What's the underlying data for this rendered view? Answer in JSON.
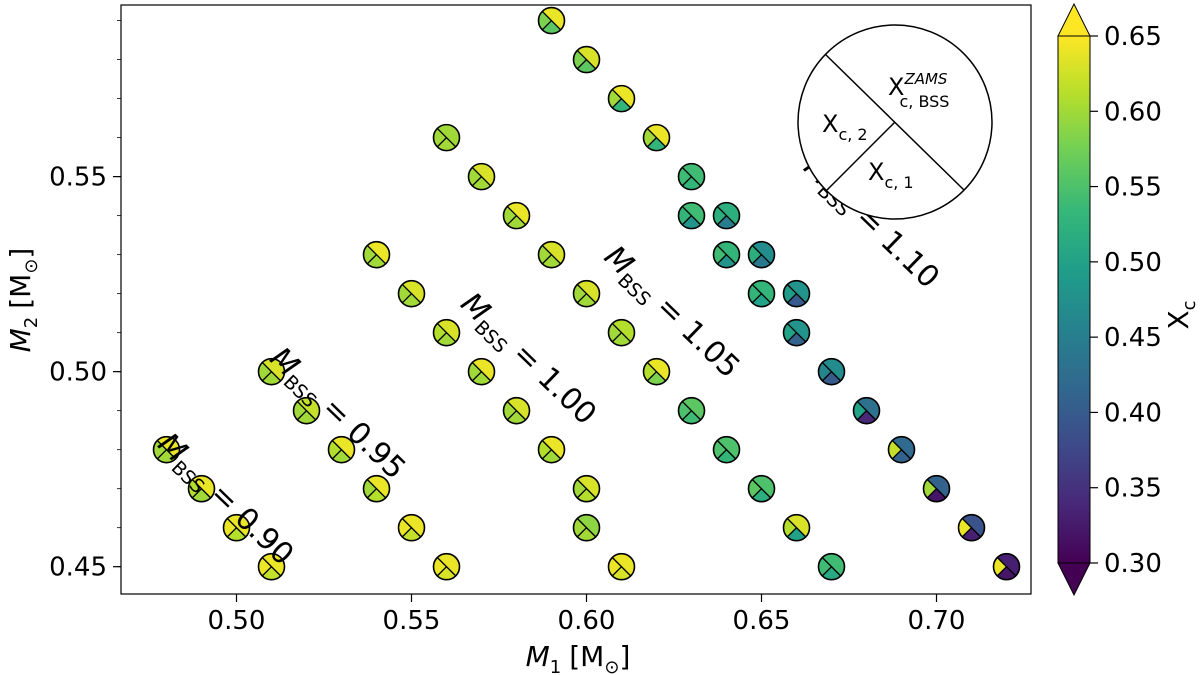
{
  "chart_data": {
    "type": "scatter",
    "marker": "split-circle",
    "xlabel": "M",
    "xlabel_sub": "1",
    "xlabel_unit": "[M",
    "xlabel_unit_sub": "⊙",
    "xlabel_unit_close": "]",
    "ylabel": "M",
    "ylabel_sub": "2",
    "ylabel_unit": "[M",
    "ylabel_unit_sub": "⊙",
    "ylabel_unit_close": "]",
    "xlim": [
      0.467,
      0.727
    ],
    "ylim": [
      0.443,
      0.594
    ],
    "xticks": [
      {
        "value": 0.5,
        "label": "0.50"
      },
      {
        "value": 0.55,
        "label": "0.55"
      },
      {
        "value": 0.6,
        "label": "0.60"
      },
      {
        "value": 0.65,
        "label": "0.65"
      },
      {
        "value": 0.7,
        "label": "0.70"
      }
    ],
    "yticks": [
      {
        "value": 0.45,
        "label": "0.45"
      },
      {
        "value": 0.5,
        "label": "0.50"
      },
      {
        "value": 0.55,
        "label": "0.55"
      }
    ],
    "colorbar": {
      "label": "X",
      "label_sub": "c",
      "range": [
        0.3,
        0.65
      ],
      "ticks": [
        {
          "value": 0.65,
          "label": "0.65"
        },
        {
          "value": 0.6,
          "label": "0.60"
        },
        {
          "value": 0.55,
          "label": "0.55"
        },
        {
          "value": 0.5,
          "label": "0.50"
        },
        {
          "value": 0.45,
          "label": "0.45"
        },
        {
          "value": 0.4,
          "label": "0.40"
        },
        {
          "value": 0.35,
          "label": "0.35"
        },
        {
          "value": 0.3,
          "label": "0.30"
        }
      ],
      "colormap": [
        "#440154",
        "#482878",
        "#3e4a89",
        "#31688e",
        "#26828e",
        "#1f9e89",
        "#35b779",
        "#6ece58",
        "#b5de2b",
        "#fde725"
      ],
      "extend": "both"
    },
    "legend": {
      "position": "top-right",
      "top_label": "X",
      "top_sup": "ZAMS",
      "top_sub": "c, BSS",
      "left_label": "X",
      "left_sub": "c, 2",
      "bottom_label": "X",
      "bottom_sub": "c, 1"
    },
    "annotations": [
      {
        "prefix": "M",
        "sub": "BSS",
        "text": " = 0.90",
        "x": 0.495,
        "y": 0.4655
      },
      {
        "prefix": "M",
        "sub": "BSS",
        "text": " = 0.95",
        "x": 0.527,
        "y": 0.4875
      },
      {
        "prefix": "M",
        "sub": "BSS",
        "text": " = 1.00",
        "x": 0.5815,
        "y": 0.5015
      },
      {
        "prefix": "M",
        "sub": "BSS",
        "text": " = 1.05",
        "x": 0.6225,
        "y": 0.5135
      },
      {
        "prefix": "M",
        "sub": "BSS",
        "text": " = 1.10",
        "x": 0.6795,
        "y": 0.5365
      }
    ],
    "series": [
      {
        "name": "M_BSS = 0.90",
        "points": [
          {
            "m1": 0.48,
            "m2": 0.48,
            "xc1": 0.6,
            "xc2": 0.6,
            "xc_bss": 0.64
          },
          {
            "m1": 0.49,
            "m2": 0.47,
            "xc1": 0.6,
            "xc2": 0.61,
            "xc_bss": 0.64
          },
          {
            "m1": 0.5,
            "m2": 0.46,
            "xc1": 0.61,
            "xc2": 0.64,
            "xc_bss": 0.64
          },
          {
            "m1": 0.51,
            "m2": 0.45,
            "xc1": 0.62,
            "xc2": 0.64,
            "xc_bss": 0.64
          }
        ]
      },
      {
        "name": "M_BSS = 0.95",
        "points": [
          {
            "m1": 0.51,
            "m2": 0.5,
            "xc1": 0.6,
            "xc2": 0.6,
            "xc_bss": 0.63
          },
          {
            "m1": 0.52,
            "m2": 0.49,
            "xc1": 0.6,
            "xc2": 0.6,
            "xc_bss": 0.62
          },
          {
            "m1": 0.53,
            "m2": 0.48,
            "xc1": 0.6,
            "xc2": 0.61,
            "xc_bss": 0.64
          },
          {
            "m1": 0.54,
            "m2": 0.47,
            "xc1": 0.61,
            "xc2": 0.6,
            "xc_bss": 0.64
          },
          {
            "m1": 0.55,
            "m2": 0.46,
            "xc1": 0.62,
            "xc2": 0.64,
            "xc_bss": 0.64
          },
          {
            "m1": 0.56,
            "m2": 0.45,
            "xc1": 0.63,
            "xc2": 0.64,
            "xc_bss": 0.64
          }
        ]
      },
      {
        "name": "M_BSS = 1.00",
        "points": [
          {
            "m1": 0.54,
            "m2": 0.53,
            "xc1": 0.6,
            "xc2": 0.6,
            "xc_bss": 0.64
          },
          {
            "m1": 0.55,
            "m2": 0.52,
            "xc1": 0.6,
            "xc2": 0.6,
            "xc_bss": 0.63
          },
          {
            "m1": 0.56,
            "m2": 0.51,
            "xc1": 0.6,
            "xc2": 0.61,
            "xc_bss": 0.63
          },
          {
            "m1": 0.57,
            "m2": 0.5,
            "xc1": 0.6,
            "xc2": 0.6,
            "xc_bss": 0.64
          },
          {
            "m1": 0.58,
            "m2": 0.49,
            "xc1": 0.6,
            "xc2": 0.6,
            "xc_bss": 0.63
          },
          {
            "m1": 0.59,
            "m2": 0.48,
            "xc1": 0.6,
            "xc2": 0.61,
            "xc_bss": 0.64
          },
          {
            "m1": 0.6,
            "m2": 0.47,
            "xc1": 0.61,
            "xc2": 0.6,
            "xc_bss": 0.63
          },
          {
            "m1": 0.6,
            "m2": 0.46,
            "xc1": 0.6,
            "xc2": 0.6,
            "xc_bss": 0.59
          },
          {
            "m1": 0.61,
            "m2": 0.45,
            "xc1": 0.63,
            "xc2": 0.64,
            "xc_bss": 0.64
          }
        ]
      },
      {
        "name": "M_BSS = 1.05",
        "points": [
          {
            "m1": 0.56,
            "m2": 0.56,
            "xc1": 0.6,
            "xc2": 0.6,
            "xc_bss": 0.6
          },
          {
            "m1": 0.57,
            "m2": 0.55,
            "xc1": 0.6,
            "xc2": 0.6,
            "xc_bss": 0.63
          },
          {
            "m1": 0.58,
            "m2": 0.54,
            "xc1": 0.6,
            "xc2": 0.6,
            "xc_bss": 0.64
          },
          {
            "m1": 0.59,
            "m2": 0.53,
            "xc1": 0.6,
            "xc2": 0.6,
            "xc_bss": 0.63
          },
          {
            "m1": 0.6,
            "m2": 0.52,
            "xc1": 0.6,
            "xc2": 0.6,
            "xc_bss": 0.63
          },
          {
            "m1": 0.61,
            "m2": 0.51,
            "xc1": 0.6,
            "xc2": 0.6,
            "xc_bss": 0.61
          },
          {
            "m1": 0.62,
            "m2": 0.5,
            "xc1": 0.58,
            "xc2": 0.61,
            "xc_bss": 0.64
          },
          {
            "m1": 0.63,
            "m2": 0.49,
            "xc1": 0.54,
            "xc2": 0.55,
            "xc_bss": 0.56
          },
          {
            "m1": 0.64,
            "m2": 0.48,
            "xc1": 0.53,
            "xc2": 0.55,
            "xc_bss": 0.55
          },
          {
            "m1": 0.65,
            "m2": 0.47,
            "xc1": 0.52,
            "xc2": 0.56,
            "xc_bss": 0.55
          },
          {
            "m1": 0.66,
            "m2": 0.46,
            "xc1": 0.5,
            "xc2": 0.61,
            "xc_bss": 0.63
          },
          {
            "m1": 0.67,
            "m2": 0.45,
            "xc1": 0.51,
            "xc2": 0.54,
            "xc_bss": 0.54
          }
        ]
      },
      {
        "name": "M_BSS = 1.10",
        "points": [
          {
            "m1": 0.59,
            "m2": 0.59,
            "xc1": 0.56,
            "xc2": 0.58,
            "xc_bss": 0.64
          },
          {
            "m1": 0.6,
            "m2": 0.58,
            "xc1": 0.56,
            "xc2": 0.58,
            "xc_bss": 0.63
          },
          {
            "m1": 0.61,
            "m2": 0.57,
            "xc1": 0.53,
            "xc2": 0.6,
            "xc_bss": 0.64
          },
          {
            "m1": 0.62,
            "m2": 0.56,
            "xc1": 0.53,
            "xc2": 0.6,
            "xc_bss": 0.64
          },
          {
            "m1": 0.63,
            "m2": 0.55,
            "xc1": 0.53,
            "xc2": 0.54,
            "xc_bss": 0.54
          },
          {
            "m1": 0.63,
            "m2": 0.54,
            "xc1": 0.48,
            "xc2": 0.53,
            "xc_bss": 0.54
          },
          {
            "m1": 0.64,
            "m2": 0.54,
            "xc1": 0.45,
            "xc2": 0.52,
            "xc_bss": 0.52
          },
          {
            "m1": 0.64,
            "m2": 0.53,
            "xc1": 0.48,
            "xc2": 0.54,
            "xc_bss": 0.53
          },
          {
            "m1": 0.65,
            "m2": 0.53,
            "xc1": 0.44,
            "xc2": 0.52,
            "xc_bss": 0.47
          },
          {
            "m1": 0.65,
            "m2": 0.52,
            "xc1": 0.5,
            "xc2": 0.53,
            "xc_bss": 0.53
          },
          {
            "m1": 0.66,
            "m2": 0.52,
            "xc1": 0.4,
            "xc2": 0.49,
            "xc_bss": 0.48
          },
          {
            "m1": 0.66,
            "m2": 0.51,
            "xc1": 0.41,
            "xc2": 0.5,
            "xc_bss": 0.48
          },
          {
            "m1": 0.67,
            "m2": 0.5,
            "xc1": 0.4,
            "xc2": 0.46,
            "xc_bss": 0.47
          },
          {
            "m1": 0.68,
            "m2": 0.49,
            "xc1": 0.34,
            "xc2": 0.5,
            "xc_bss": 0.43
          },
          {
            "m1": 0.69,
            "m2": 0.48,
            "xc1": 0.41,
            "xc2": 0.62,
            "xc_bss": 0.42
          },
          {
            "m1": 0.7,
            "m2": 0.47,
            "xc1": 0.32,
            "xc2": 0.6,
            "xc_bss": 0.41
          },
          {
            "m1": 0.71,
            "m2": 0.46,
            "xc1": 0.33,
            "xc2": 0.64,
            "xc_bss": 0.39
          },
          {
            "m1": 0.72,
            "m2": 0.45,
            "xc1": 0.32,
            "xc2": 0.64,
            "xc_bss": 0.33
          }
        ]
      }
    ]
  }
}
